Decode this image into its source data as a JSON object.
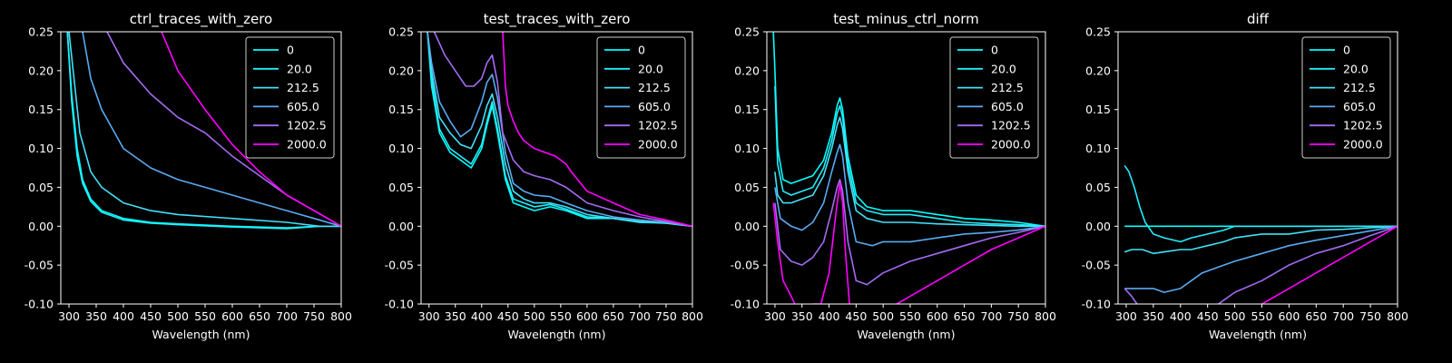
{
  "legend_labels": [
    "0",
    "20.0",
    "212.5",
    "605.0",
    "1202.5",
    "2000.0"
  ],
  "colors": [
    "#00ffff",
    "#22eefb",
    "#43e0f8",
    "#5aaaf2",
    "#a46bf2",
    "#ff00ff"
  ],
  "chart_data": [
    {
      "type": "line",
      "title": "ctrl_traces_with_zero",
      "xlabel": "Wavelength (nm)",
      "ylabel": "",
      "xlim": [
        285,
        800
      ],
      "ylim": [
        -0.1,
        0.25
      ],
      "xticks": [
        300,
        350,
        400,
        450,
        500,
        550,
        600,
        650,
        700,
        750,
        800
      ],
      "yticks": [
        "0.25",
        "0.20",
        "0.15",
        "0.10",
        "0.05",
        "0.00",
        "-0.05",
        "-0.10"
      ],
      "legend": "top-right",
      "series": [
        {
          "name": "0",
          "x": [
            297,
            305,
            315,
            325,
            340,
            360,
            400,
            450,
            500,
            600,
            700,
            760,
            800
          ],
          "y": [
            0.25,
            0.17,
            0.1,
            0.06,
            0.035,
            0.02,
            0.01,
            0.005,
            0.003,
            0.0,
            -0.002,
            0.0,
            0.0
          ]
        },
        {
          "name": "20.0",
          "x": [
            297,
            305,
            315,
            325,
            340,
            360,
            400,
            450,
            500,
            600,
            700,
            760,
            800
          ],
          "y": [
            0.25,
            0.16,
            0.09,
            0.055,
            0.032,
            0.018,
            0.008,
            0.004,
            0.002,
            -0.001,
            -0.003,
            0.0,
            0.0
          ]
        },
        {
          "name": "212.5",
          "x": [
            300,
            320,
            340,
            360,
            400,
            450,
            500,
            600,
            700,
            760,
            800
          ],
          "y": [
            0.25,
            0.12,
            0.07,
            0.05,
            0.03,
            0.02,
            0.015,
            0.01,
            0.005,
            0.0,
            0.0
          ]
        },
        {
          "name": "605.0",
          "x": [
            325,
            340,
            360,
            380,
            400,
            450,
            500,
            550,
            600,
            650,
            700,
            750,
            800
          ],
          "y": [
            0.25,
            0.19,
            0.15,
            0.125,
            0.1,
            0.075,
            0.06,
            0.05,
            0.04,
            0.03,
            0.02,
            0.01,
            0.0
          ]
        },
        {
          "name": "1202.5",
          "x": [
            370,
            400,
            450,
            500,
            550,
            600,
            650,
            700,
            750,
            800
          ],
          "y": [
            0.25,
            0.21,
            0.17,
            0.14,
            0.12,
            0.09,
            0.065,
            0.04,
            0.02,
            0.0
          ]
        },
        {
          "name": "2000.0",
          "x": [
            470,
            500,
            550,
            600,
            650,
            700,
            750,
            800
          ],
          "y": [
            0.25,
            0.2,
            0.15,
            0.105,
            0.07,
            0.04,
            0.02,
            0.0
          ]
        }
      ]
    },
    {
      "type": "line",
      "title": "test_traces_with_zero",
      "xlabel": "Wavelength (nm)",
      "ylabel": "",
      "xlim": [
        285,
        800
      ],
      "ylim": [
        -0.1,
        0.25
      ],
      "xticks": [
        300,
        350,
        400,
        450,
        500,
        550,
        600,
        650,
        700,
        750,
        800
      ],
      "yticks": [
        "0.25",
        "0.20",
        "0.15",
        "0.10",
        "0.05",
        "0.00",
        "-0.05",
        "-0.10"
      ],
      "legend": "top-right",
      "series": [
        {
          "name": "0",
          "x": [
            297,
            305,
            320,
            340,
            360,
            380,
            400,
            410,
            420,
            430,
            445,
            460,
            480,
            500,
            530,
            560,
            600,
            650,
            700,
            750,
            800
          ],
          "y": [
            0.25,
            0.18,
            0.12,
            0.095,
            0.085,
            0.075,
            0.1,
            0.13,
            0.155,
            0.12,
            0.06,
            0.03,
            0.025,
            0.02,
            0.025,
            0.02,
            0.01,
            0.01,
            0.005,
            0.005,
            0.0
          ]
        },
        {
          "name": "20.0",
          "x": [
            297,
            305,
            320,
            340,
            360,
            380,
            400,
            410,
            420,
            430,
            445,
            460,
            480,
            500,
            530,
            560,
            600,
            650,
            700,
            750,
            800
          ],
          "y": [
            0.25,
            0.19,
            0.125,
            0.1,
            0.09,
            0.08,
            0.105,
            0.135,
            0.16,
            0.125,
            0.065,
            0.035,
            0.03,
            0.025,
            0.028,
            0.022,
            0.012,
            0.01,
            0.005,
            0.004,
            0.0
          ]
        },
        {
          "name": "212.5",
          "x": [
            297,
            305,
            320,
            340,
            360,
            380,
            400,
            410,
            420,
            430,
            445,
            460,
            480,
            500,
            530,
            560,
            600,
            650,
            700,
            750,
            800
          ],
          "y": [
            0.25,
            0.2,
            0.14,
            0.12,
            0.105,
            0.1,
            0.13,
            0.155,
            0.17,
            0.14,
            0.08,
            0.045,
            0.035,
            0.03,
            0.03,
            0.025,
            0.015,
            0.01,
            0.006,
            0.004,
            0.0
          ]
        },
        {
          "name": "605.0",
          "x": [
            297,
            305,
            320,
            340,
            360,
            380,
            400,
            410,
            420,
            430,
            445,
            460,
            480,
            500,
            530,
            560,
            600,
            650,
            700,
            750,
            800
          ],
          "y": [
            0.25,
            0.21,
            0.16,
            0.135,
            0.115,
            0.125,
            0.16,
            0.185,
            0.195,
            0.165,
            0.095,
            0.055,
            0.045,
            0.04,
            0.038,
            0.03,
            0.02,
            0.012,
            0.008,
            0.005,
            0.0
          ]
        },
        {
          "name": "1202.5",
          "x": [
            310,
            330,
            350,
            370,
            385,
            400,
            410,
            420,
            430,
            440,
            460,
            480,
            500,
            530,
            560,
            600,
            650,
            700,
            750,
            800
          ],
          "y": [
            0.25,
            0.22,
            0.2,
            0.18,
            0.18,
            0.19,
            0.21,
            0.22,
            0.185,
            0.12,
            0.085,
            0.07,
            0.065,
            0.06,
            0.05,
            0.03,
            0.02,
            0.012,
            0.006,
            0.0
          ]
        },
        {
          "name": "2000.0",
          "x": [
            440,
            445,
            450,
            460,
            470,
            480,
            500,
            520,
            540,
            560,
            570,
            600,
            650,
            700,
            750,
            800
          ],
          "y": [
            0.25,
            0.18,
            0.155,
            0.135,
            0.12,
            0.11,
            0.1,
            0.095,
            0.09,
            0.08,
            0.07,
            0.045,
            0.03,
            0.015,
            0.008,
            0.0
          ]
        }
      ]
    },
    {
      "type": "line",
      "title": "test_minus_ctrl_norm",
      "xlabel": "Wavelength (nm)",
      "ylabel": "",
      "xlim": [
        285,
        800
      ],
      "ylim": [
        -0.1,
        0.25
      ],
      "xticks": [
        300,
        350,
        400,
        450,
        500,
        550,
        600,
        650,
        700,
        750,
        800
      ],
      "yticks": [
        "0.25",
        "0.20",
        "0.15",
        "0.10",
        "0.05",
        "0.00",
        "-0.05",
        "-0.10"
      ],
      "legend": "top-right",
      "series": [
        {
          "name": "0",
          "x": [
            297,
            300,
            305,
            315,
            330,
            350,
            370,
            390,
            405,
            415,
            420,
            425,
            435,
            450,
            470,
            500,
            550,
            600,
            650,
            700,
            750,
            800
          ],
          "y": [
            0.25,
            0.2,
            0.1,
            0.06,
            0.055,
            0.06,
            0.065,
            0.085,
            0.12,
            0.155,
            0.165,
            0.15,
            0.09,
            0.04,
            0.025,
            0.02,
            0.02,
            0.015,
            0.01,
            0.008,
            0.005,
            0.0
          ]
        },
        {
          "name": "20.0",
          "x": [
            300,
            305,
            315,
            330,
            350,
            370,
            390,
            405,
            415,
            420,
            425,
            435,
            450,
            470,
            500,
            550,
            600,
            650,
            700,
            750,
            800
          ],
          "y": [
            0.18,
            0.08,
            0.045,
            0.04,
            0.045,
            0.05,
            0.075,
            0.11,
            0.145,
            0.155,
            0.14,
            0.08,
            0.03,
            0.02,
            0.015,
            0.015,
            0.01,
            0.005,
            0.003,
            0.002,
            0.0
          ]
        },
        {
          "name": "212.5",
          "x": [
            300,
            305,
            315,
            330,
            350,
            370,
            390,
            405,
            415,
            420,
            425,
            435,
            450,
            470,
            500,
            550,
            600,
            650,
            700,
            750,
            800
          ],
          "y": [
            0.07,
            0.04,
            0.03,
            0.03,
            0.035,
            0.04,
            0.065,
            0.1,
            0.13,
            0.14,
            0.125,
            0.07,
            0.02,
            0.01,
            0.005,
            0.005,
            0.003,
            0.002,
            0.001,
            0.0,
            0.0
          ]
        },
        {
          "name": "605.0",
          "x": [
            300,
            310,
            330,
            350,
            370,
            390,
            405,
            415,
            420,
            425,
            435,
            450,
            480,
            500,
            550,
            600,
            650,
            700,
            750,
            800
          ],
          "y": [
            0.05,
            0.01,
            0.0,
            -0.005,
            0.005,
            0.03,
            0.07,
            0.095,
            0.105,
            0.09,
            0.03,
            -0.02,
            -0.025,
            -0.02,
            -0.02,
            -0.015,
            -0.01,
            -0.008,
            -0.005,
            0.0
          ]
        },
        {
          "name": "1202.5",
          "x": [
            300,
            310,
            330,
            350,
            370,
            390,
            405,
            415,
            420,
            425,
            435,
            450,
            470,
            500,
            550,
            600,
            650,
            700,
            750,
            800
          ],
          "y": [
            0.03,
            -0.03,
            -0.045,
            -0.05,
            -0.04,
            -0.02,
            0.02,
            0.05,
            0.06,
            0.045,
            -0.02,
            -0.07,
            -0.075,
            -0.06,
            -0.045,
            -0.035,
            -0.025,
            -0.015,
            -0.008,
            0.0
          ]
        },
        {
          "name": "2000.0",
          "x": [
            297,
            305,
            315,
            330,
            350,
            370,
            385,
            400,
            410,
            415,
            420,
            425,
            430,
            440,
            460,
            480,
            500,
            550,
            600,
            650,
            700,
            750,
            800
          ],
          "y": [
            0.03,
            -0.02,
            -0.07,
            -0.09,
            -0.12,
            -0.1,
            -0.1,
            -0.06,
            0.0,
            0.03,
            0.055,
            0.03,
            -0.03,
            -0.12,
            -0.15,
            -0.13,
            -0.11,
            -0.09,
            -0.07,
            -0.05,
            -0.03,
            -0.015,
            0.0
          ]
        }
      ]
    },
    {
      "type": "line",
      "title": "diff",
      "xlabel": "Wavelength (nm)",
      "ylabel": "",
      "xlim": [
        285,
        800
      ],
      "ylim": [
        -0.1,
        0.25
      ],
      "xticks": [
        300,
        350,
        400,
        450,
        500,
        550,
        600,
        650,
        700,
        750,
        800
      ],
      "yticks": [
        "0.25",
        "0.20",
        "0.15",
        "0.10",
        "0.05",
        "0.00",
        "-0.05",
        "-0.10"
      ],
      "legend": "top-right",
      "series": [
        {
          "name": "0",
          "x": [
            297,
            800
          ],
          "y": [
            0.0,
            0.0
          ]
        },
        {
          "name": "20.0",
          "x": [
            297,
            305,
            315,
            325,
            335,
            350,
            370,
            400,
            420,
            450,
            480,
            500,
            550,
            600,
            650,
            700,
            750,
            800
          ],
          "y": [
            0.078,
            0.07,
            0.05,
            0.025,
            0.005,
            -0.01,
            -0.015,
            -0.02,
            -0.015,
            -0.01,
            -0.005,
            0.0,
            0.0,
            0.0,
            0.0,
            0.0,
            0.0,
            0.0
          ]
        },
        {
          "name": "212.5",
          "x": [
            297,
            310,
            330,
            350,
            370,
            400,
            420,
            450,
            480,
            500,
            550,
            600,
            650,
            700,
            750,
            800
          ],
          "y": [
            -0.033,
            -0.03,
            -0.03,
            -0.035,
            -0.033,
            -0.03,
            -0.03,
            -0.025,
            -0.02,
            -0.015,
            -0.01,
            -0.01,
            -0.005,
            -0.004,
            -0.002,
            0.0
          ]
        },
        {
          "name": "605.0",
          "x": [
            297,
            310,
            330,
            350,
            370,
            400,
            420,
            440,
            460,
            500,
            550,
            600,
            650,
            700,
            750,
            800
          ],
          "y": [
            -0.08,
            -0.08,
            -0.08,
            -0.08,
            -0.085,
            -0.08,
            -0.07,
            -0.06,
            -0.055,
            -0.045,
            -0.035,
            -0.025,
            -0.018,
            -0.012,
            -0.006,
            0.0
          ]
        },
        {
          "name": "1202.5",
          "x": [
            297,
            310,
            320,
            330,
            450,
            470,
            500,
            550,
            600,
            650,
            700,
            750,
            800
          ],
          "y": [
            -0.08,
            -0.09,
            -0.1,
            -0.11,
            -0.11,
            -0.1,
            -0.085,
            -0.07,
            -0.05,
            -0.035,
            -0.025,
            -0.012,
            0.0
          ]
        },
        {
          "name": "2000.0",
          "x": [
            540,
            550,
            600,
            650,
            700,
            750,
            800
          ],
          "y": [
            -0.11,
            -0.1,
            -0.08,
            -0.06,
            -0.04,
            -0.02,
            0.0
          ]
        }
      ]
    }
  ]
}
